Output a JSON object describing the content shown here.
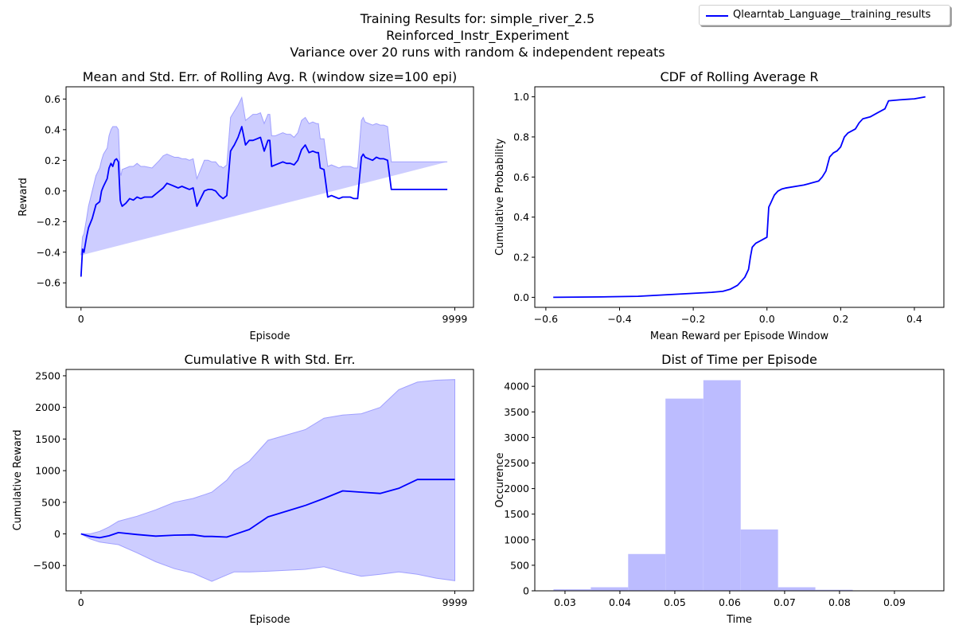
{
  "figure": {
    "title_lines": [
      "Training Results for: simple_river_2.5",
      "Reinforced_Instr_Experiment",
      "Variance over 20 runs with random & independent repeats"
    ],
    "legend_label": "Qlearntab_Language__training_results",
    "colors": {
      "line": "#0000ff",
      "band": "#c8c8ff",
      "band_edge": "#a0a0ff",
      "hist": "#bcbcff"
    }
  },
  "chart_data": [
    {
      "type": "line",
      "title": "Mean and Std. Err. of Rolling Avg. R (window size=100 epi)",
      "xlabel": "Episode",
      "ylabel": "Reward",
      "xlim": [
        -400,
        10500
      ],
      "ylim": [
        -0.76,
        0.68
      ],
      "xticks": [
        0,
        9999
      ],
      "yticks": [
        -0.6,
        -0.4,
        -0.2,
        0.0,
        0.2,
        0.4,
        0.6
      ],
      "x": [
        0,
        40,
        80,
        150,
        200,
        300,
        400,
        500,
        550,
        600,
        700,
        750,
        800,
        850,
        900,
        950,
        1000,
        1050,
        1070,
        1100,
        1200,
        1300,
        1400,
        1500,
        1600,
        1700,
        1900,
        2100,
        2200,
        2300,
        2400,
        2500,
        2600,
        2700,
        2800,
        2900,
        3000,
        3100,
        3200,
        3300,
        3400,
        3500,
        3600,
        3700,
        3750,
        3800,
        3900,
        4000,
        4050,
        4100,
        4200,
        4300,
        4400,
        4500,
        4600,
        4700,
        4800,
        4900,
        5000,
        5050,
        5100,
        5200,
        5300,
        5400,
        5500,
        5600,
        5700,
        5800,
        5900,
        6000,
        6100,
        6200,
        6300,
        6350,
        6400,
        6500,
        6600,
        6700,
        6800,
        6900,
        7000,
        7100,
        7200,
        7300,
        7400,
        7500,
        7550,
        7600,
        7700,
        7800,
        7900,
        8000,
        8100,
        8200,
        8300,
        8400,
        8500,
        8600,
        8700,
        8800,
        8900,
        9000,
        9100,
        9200,
        9300,
        9400,
        9500,
        9600,
        9700,
        9800,
        9999
      ],
      "series": [
        {
          "mean": [
            -0.56,
            -0.38,
            -0.4,
            -0.3,
            -0.24,
            -0.18,
            -0.09,
            -0.07,
            0.0,
            0.03,
            0.08,
            0.15,
            0.18,
            0.16,
            0.2,
            0.21,
            0.19,
            -0.06,
            -0.08,
            -0.1,
            -0.08,
            -0.05,
            -0.06,
            -0.04,
            -0.05,
            -0.04,
            -0.04,
            0.0,
            0.02,
            0.05,
            0.04,
            0.03,
            0.02,
            0.03,
            0.02,
            0.01,
            0.02,
            -0.1,
            -0.05,
            0.0,
            0.01,
            0.01,
            0.0,
            -0.03,
            -0.04,
            -0.05,
            -0.03,
            0.26,
            0.28,
            0.3,
            0.35,
            0.42,
            0.3,
            0.33,
            0.33,
            0.34,
            0.35,
            0.26,
            0.33,
            0.33,
            0.16,
            0.17,
            0.18,
            0.19,
            0.18,
            0.18,
            0.17,
            0.2,
            0.27,
            0.3,
            0.25,
            0.26,
            0.25,
            0.25,
            0.15,
            0.14,
            -0.04,
            -0.03,
            -0.04,
            -0.05,
            -0.04,
            -0.04,
            -0.04,
            -0.05,
            -0.05,
            0.22,
            0.24,
            0.22,
            0.21,
            0.2,
            0.22,
            0.21,
            0.21,
            0.2,
            0.01,
            0.01,
            0.01,
            0.01,
            0.01,
            0.01,
            0.01,
            0.01,
            0.01,
            0.01,
            0.01,
            0.01,
            0.01,
            0.01,
            0.01,
            0.01
          ],
          "upper": [
            -0.42,
            -0.3,
            -0.28,
            -0.18,
            -0.1,
            0.0,
            0.1,
            0.15,
            0.2,
            0.24,
            0.28,
            0.36,
            0.4,
            0.42,
            0.42,
            0.42,
            0.4,
            0.12,
            0.1,
            0.14,
            0.15,
            0.16,
            0.16,
            0.18,
            0.16,
            0.16,
            0.15,
            0.2,
            0.23,
            0.24,
            0.23,
            0.22,
            0.22,
            0.21,
            0.21,
            0.2,
            0.21,
            0.08,
            0.14,
            0.2,
            0.2,
            0.19,
            0.19,
            0.16,
            0.16,
            0.15,
            0.17,
            0.48,
            0.5,
            0.52,
            0.56,
            0.61,
            0.46,
            0.48,
            0.5,
            0.5,
            0.51,
            0.44,
            0.5,
            0.5,
            0.36,
            0.36,
            0.37,
            0.38,
            0.37,
            0.37,
            0.35,
            0.38,
            0.46,
            0.48,
            0.44,
            0.45,
            0.44,
            0.44,
            0.34,
            0.34,
            0.16,
            0.17,
            0.16,
            0.15,
            0.16,
            0.16,
            0.16,
            0.15,
            0.15,
            0.46,
            0.48,
            0.45,
            0.44,
            0.43,
            0.44,
            0.43,
            0.43,
            0.42,
            0.19,
            0.19,
            0.19,
            0.19,
            0.19,
            0.19,
            0.19,
            0.19,
            0.19,
            0.19,
            0.19,
            0.19,
            0.19,
            0.19,
            0.19,
            0.19
          ],
          "lower": [
            -0.7,
            -0.48,
            -0.52,
            -0.44,
            -0.38,
            -0.36,
            -0.3,
            -0.28,
            -0.2,
            -0.16,
            -0.12,
            -0.06,
            -0.04,
            -0.08,
            -0.02,
            0.0,
            -0.02,
            -0.25,
            -0.26,
            -0.29,
            -0.28,
            -0.26,
            -0.27,
            -0.26,
            -0.25,
            -0.24,
            -0.24,
            -0.2,
            -0.19,
            -0.17,
            -0.16,
            -0.16,
            -0.17,
            -0.16,
            -0.17,
            -0.18,
            -0.17,
            -0.3,
            -0.25,
            -0.21,
            -0.19,
            -0.18,
            -0.19,
            -0.22,
            -0.23,
            -0.24,
            -0.23,
            0.06,
            0.08,
            0.1,
            0.15,
            0.22,
            0.13,
            0.16,
            0.17,
            0.18,
            0.19,
            0.09,
            0.16,
            0.17,
            -0.04,
            -0.03,
            -0.02,
            -0.01,
            -0.02,
            -0.02,
            -0.02,
            0.01,
            0.08,
            0.1,
            0.06,
            0.08,
            0.07,
            0.07,
            -0.05,
            -0.06,
            -0.22,
            -0.22,
            -0.23,
            -0.24,
            -0.23,
            -0.23,
            -0.23,
            -0.24,
            -0.24,
            -0.02,
            0.0,
            -0.01,
            -0.02,
            -0.03,
            -0.01,
            -0.02,
            -0.02,
            -0.03,
            -0.17,
            -0.17,
            -0.17,
            -0.17,
            -0.17,
            -0.17,
            -0.17,
            -0.17,
            -0.17,
            -0.17,
            -0.17,
            -0.17,
            -0.17,
            -0.17,
            -0.17,
            -0.17
          ]
        }
      ]
    },
    {
      "type": "line",
      "title": "CDF of Rolling Average R",
      "xlabel": "Mean Reward per Episode Window",
      "ylabel": "Cumulative Probability",
      "xlim": [
        -0.63,
        0.48
      ],
      "ylim": [
        -0.05,
        1.05
      ],
      "xticks": [
        -0.6,
        -0.4,
        -0.2,
        0.0,
        0.2,
        0.4
      ],
      "yticks": [
        0.0,
        0.2,
        0.4,
        0.6,
        0.8,
        1.0
      ],
      "x": [
        -0.58,
        -0.45,
        -0.35,
        -0.3,
        -0.2,
        -0.15,
        -0.12,
        -0.1,
        -0.09,
        -0.08,
        -0.07,
        -0.06,
        -0.055,
        -0.05,
        -0.045,
        -0.04,
        -0.035,
        -0.03,
        -0.02,
        -0.01,
        0.0,
        0.005,
        0.01,
        0.02,
        0.03,
        0.04,
        0.05,
        0.1,
        0.12,
        0.14,
        0.15,
        0.16,
        0.17,
        0.18,
        0.19,
        0.2,
        0.21,
        0.22,
        0.24,
        0.25,
        0.26,
        0.28,
        0.3,
        0.32,
        0.33,
        0.36,
        0.4,
        0.43
      ],
      "series": [
        {
          "y": [
            0.0,
            0.002,
            0.005,
            0.01,
            0.02,
            0.025,
            0.03,
            0.04,
            0.05,
            0.06,
            0.08,
            0.1,
            0.12,
            0.14,
            0.2,
            0.25,
            0.26,
            0.27,
            0.28,
            0.29,
            0.3,
            0.45,
            0.47,
            0.51,
            0.53,
            0.54,
            0.545,
            0.56,
            0.57,
            0.58,
            0.6,
            0.63,
            0.7,
            0.72,
            0.73,
            0.75,
            0.8,
            0.82,
            0.84,
            0.87,
            0.89,
            0.9,
            0.92,
            0.94,
            0.98,
            0.985,
            0.99,
            1.0
          ]
        }
      ]
    },
    {
      "type": "line",
      "title": "Cumulative R with Std. Err.",
      "xlabel": "Episode",
      "ylabel": "Cumulative Reward",
      "xlim": [
        -400,
        10500
      ],
      "ylim": [
        -900,
        2600
      ],
      "xticks": [
        0,
        9999
      ],
      "yticks": [
        -500,
        0,
        500,
        1000,
        1500,
        2000,
        2500
      ],
      "x": [
        0,
        250,
        500,
        750,
        1000,
        1500,
        2000,
        2500,
        3000,
        3300,
        3500,
        3900,
        4100,
        4500,
        5000,
        6000,
        6500,
        7000,
        7500,
        8000,
        8500,
        9000,
        9500,
        9999
      ],
      "series": [
        {
          "mean": [
            0,
            -40,
            -60,
            -30,
            20,
            -10,
            -35,
            -20,
            -15,
            -40,
            -40,
            -50,
            -10,
            70,
            270,
            450,
            560,
            680,
            660,
            640,
            720,
            860,
            860,
            860
          ],
          "upper": [
            0,
            0,
            40,
            110,
            200,
            280,
            380,
            500,
            560,
            620,
            660,
            850,
            1000,
            1150,
            1480,
            1650,
            1830,
            1880,
            1900,
            2000,
            2280,
            2400,
            2430,
            2440
          ],
          "lower": [
            0,
            -80,
            -130,
            -150,
            -170,
            -300,
            -440,
            -550,
            -620,
            -700,
            -750,
            -650,
            -600,
            -600,
            -590,
            -560,
            -520,
            -600,
            -670,
            -640,
            -600,
            -640,
            -700,
            -740
          ]
        }
      ]
    },
    {
      "type": "bar",
      "title": "Dist of Time per Episode",
      "xlabel": "Time",
      "ylabel": "Occurence",
      "xlim": [
        0.0245,
        0.099
      ],
      "ylim": [
        0,
        4330
      ],
      "xticks": [
        0.03,
        0.04,
        0.05,
        0.06,
        0.07,
        0.08,
        0.09
      ],
      "yticks": [
        0,
        500,
        1000,
        1500,
        2000,
        2500,
        3000,
        3500,
        4000
      ],
      "bin_edges": [
        0.0279,
        0.0347,
        0.0415,
        0.0483,
        0.0552,
        0.062,
        0.0688,
        0.0756,
        0.0824,
        0.0892,
        0.096
      ],
      "values": [
        30,
        70,
        720,
        3760,
        4120,
        1200,
        70,
        20,
        5,
        2
      ]
    }
  ]
}
